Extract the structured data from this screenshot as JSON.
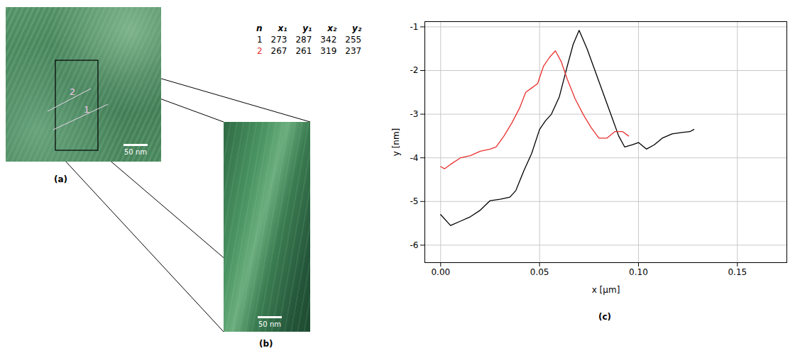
{
  "panels": {
    "a": {
      "label": "(a)",
      "scale_bar": "50 nm",
      "profile_labels": [
        "1",
        "2"
      ]
    },
    "b": {
      "label": "(b)",
      "scale_bar": "50 nm"
    },
    "c": {
      "label": "(c)"
    }
  },
  "table": {
    "header": [
      "n",
      "x₁",
      "y₁",
      "x₂",
      "y₂"
    ],
    "rows": [
      [
        1,
        273,
        287,
        342,
        255
      ],
      [
        2,
        267,
        261,
        319,
        237
      ]
    ]
  },
  "chart_data": {
    "type": "line",
    "xlabel": "x [µm]",
    "ylabel": "y [nm]",
    "xlim": [
      -0.008,
      0.175
    ],
    "ylim": [
      -6.4,
      -0.88
    ],
    "xticks": [
      {
        "value": 0,
        "label": "0.00"
      },
      {
        "value": 0.05,
        "label": "0.05"
      },
      {
        "value": 0.1,
        "label": "0.10"
      },
      {
        "value": 0.15,
        "label": "0.15"
      }
    ],
    "yticks": [
      -6,
      -5,
      -4,
      -3,
      -2,
      -1
    ],
    "grid": true,
    "series": [
      {
        "color": "#000000",
        "x": [
          0,
          0.005,
          0.01,
          0.015,
          0.02,
          0.025,
          0.03,
          0.035,
          0.038,
          0.042,
          0.046,
          0.05,
          0.053,
          0.056,
          0.06,
          0.064,
          0.067,
          0.07,
          0.074,
          0.078,
          0.082,
          0.086,
          0.09,
          0.093,
          0.097,
          0.1,
          0.104,
          0.108,
          0.112,
          0.117,
          0.122,
          0.126,
          0.128
        ],
        "values": [
          -5.3,
          -5.55,
          -5.45,
          -5.35,
          -5.2,
          -4.98,
          -4.95,
          -4.9,
          -4.75,
          -4.3,
          -3.9,
          -3.35,
          -3.15,
          -3.0,
          -2.6,
          -1.9,
          -1.4,
          -1.08,
          -1.5,
          -2.0,
          -2.5,
          -3.0,
          -3.5,
          -3.75,
          -3.7,
          -3.65,
          -3.8,
          -3.7,
          -3.55,
          -3.45,
          -3.42,
          -3.4,
          -3.35
        ]
      },
      {
        "color": "#e8312f",
        "x": [
          0,
          0.002,
          0.005,
          0.01,
          0.015,
          0.02,
          0.025,
          0.028,
          0.032,
          0.036,
          0.04,
          0.043,
          0.046,
          0.049,
          0.052,
          0.055,
          0.058,
          0.061,
          0.064,
          0.068,
          0.072,
          0.076,
          0.08,
          0.084,
          0.088,
          0.092,
          0.095
        ],
        "values": [
          -4.2,
          -4.25,
          -4.15,
          -4.0,
          -3.95,
          -3.85,
          -3.8,
          -3.75,
          -3.5,
          -3.2,
          -2.85,
          -2.5,
          -2.4,
          -2.3,
          -1.9,
          -1.7,
          -1.55,
          -1.8,
          -2.2,
          -2.65,
          -3.0,
          -3.3,
          -3.55,
          -3.55,
          -3.4,
          -3.4,
          -3.5
        ]
      }
    ]
  }
}
